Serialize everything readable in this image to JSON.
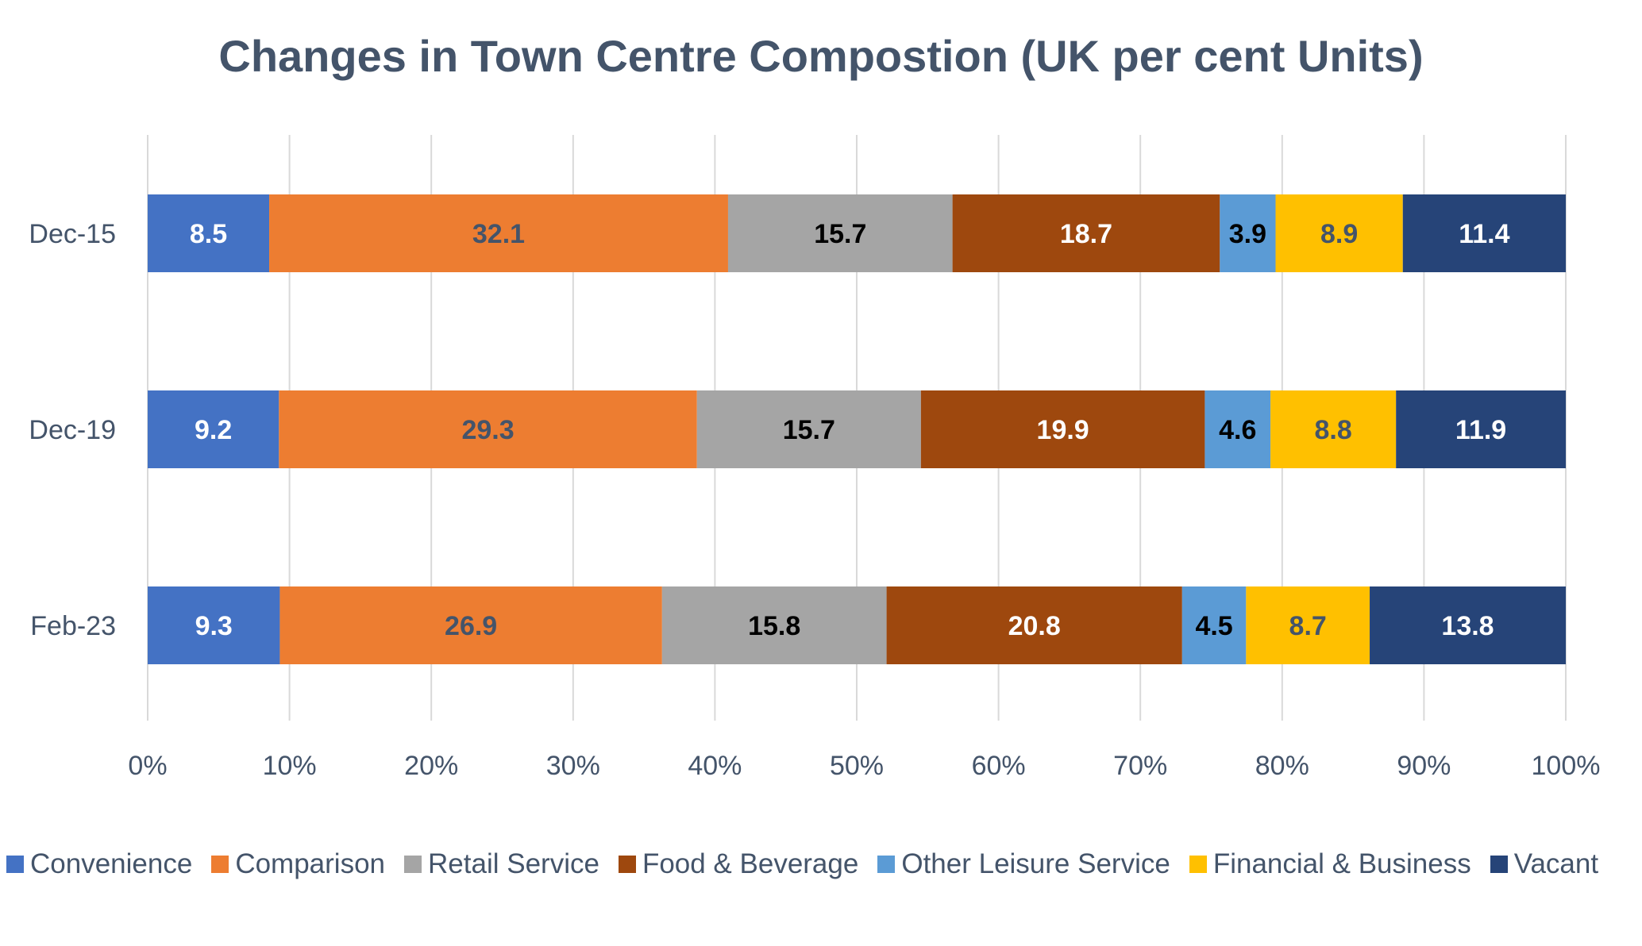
{
  "chart_data": {
    "type": "bar",
    "orientation": "horizontal",
    "stacked": "percent",
    "title": "Changes in Town Centre Compostion (UK  per cent Units)",
    "categories": [
      "Dec-15",
      "Dec-19",
      "Feb-23"
    ],
    "series": [
      {
        "name": "Convenience",
        "color": "#4472c4",
        "label_color": "#ffffff",
        "values": [
          8.5,
          9.2,
          9.3
        ]
      },
      {
        "name": "Comparison",
        "color": "#ed7d31",
        "label_color": "#44546a",
        "values": [
          32.1,
          29.3,
          26.9
        ]
      },
      {
        "name": "Retail Service",
        "color": "#a5a5a5",
        "label_color": "#000000",
        "values": [
          15.7,
          15.7,
          15.8
        ]
      },
      {
        "name": "Food & Beverage",
        "color": "#9e480e",
        "label_color": "#ffffff",
        "values": [
          18.7,
          19.9,
          20.8
        ]
      },
      {
        "name": "Other Leisure Service",
        "color": "#5b9bd5",
        "label_color": "#000000",
        "values": [
          3.9,
          4.6,
          4.5
        ]
      },
      {
        "name": "Financial & Business",
        "color": "#ffc000",
        "label_color": "#44546a",
        "values": [
          8.9,
          8.8,
          8.7
        ]
      },
      {
        "name": "Vacant",
        "color": "#264478",
        "label_color": "#ffffff",
        "values": [
          11.4,
          11.9,
          13.8
        ]
      }
    ],
    "x_ticks": [
      "0%",
      "10%",
      "20%",
      "30%",
      "40%",
      "50%",
      "60%",
      "70%",
      "80%",
      "90%",
      "100%"
    ],
    "xlim": [
      0,
      100
    ],
    "grid": true,
    "legend_position": "bottom"
  }
}
